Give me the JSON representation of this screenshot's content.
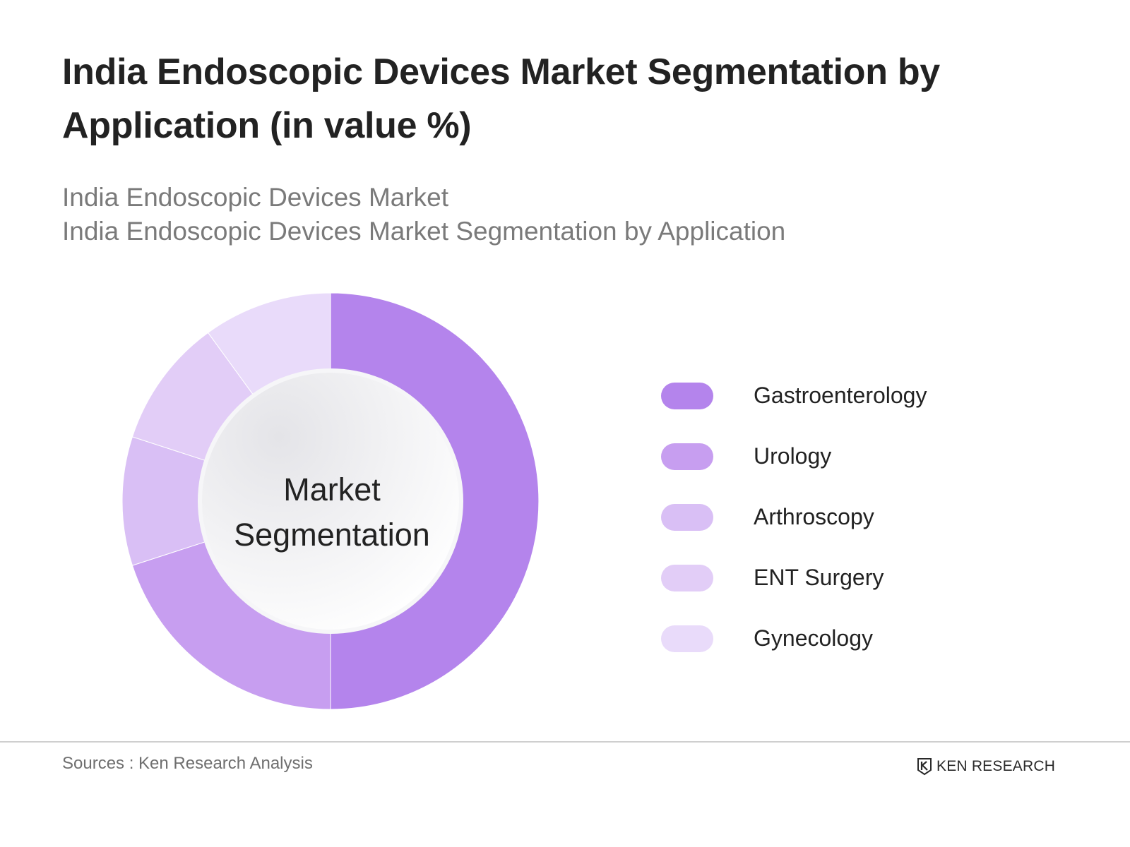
{
  "title": "India Endoscopic Devices Market Segmentation by Application (in value %)",
  "subtitle_lines": [
    "India Endoscopic Devices Market",
    "India Endoscopic Devices Market Segmentation by Application"
  ],
  "center_label_lines": [
    "Market",
    "Segmentation"
  ],
  "chart_data": {
    "type": "pie",
    "variant": "donut",
    "categories": [
      "Gastroenterology",
      "Urology",
      "Arthroscopy",
      "ENT Surgery",
      "Gynecology"
    ],
    "values": [
      50,
      20,
      10,
      10,
      10
    ],
    "colors": [
      "#b484ec",
      "#c79ef0",
      "#d9bff5",
      "#e2cdf7",
      "#e9dbfa"
    ],
    "legend_placement": "right"
  },
  "source": "Sources : Ken Research Analysis",
  "brand": "KEN RESEARCH"
}
